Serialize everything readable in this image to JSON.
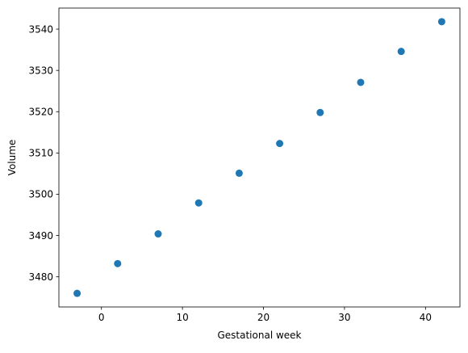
{
  "chart_data": {
    "type": "scatter",
    "title": "",
    "xlabel": "Gestational week",
    "ylabel": "Volume",
    "x": [
      -3,
      2,
      7,
      12,
      17,
      22,
      27,
      32,
      37,
      42
    ],
    "y": [
      3476,
      3483.2,
      3490.4,
      3497.9,
      3505.1,
      3512.3,
      3519.8,
      3527.1,
      3534.6,
      3541.8
    ],
    "xlim": [
      -5.25,
      44.25
    ],
    "ylim": [
      3472.7,
      3545.1
    ],
    "xticks": [
      0,
      10,
      20,
      30,
      40
    ],
    "xtick_labels": [
      "0",
      "10",
      "20",
      "30",
      "40"
    ],
    "yticks": [
      3480,
      3490,
      3500,
      3510,
      3520,
      3530,
      3540
    ],
    "ytick_labels": [
      "3480",
      "3490",
      "3500",
      "3510",
      "3520",
      "3530",
      "3540"
    ],
    "marker_color": "#1f77b4",
    "grid": false,
    "legend": "none"
  }
}
